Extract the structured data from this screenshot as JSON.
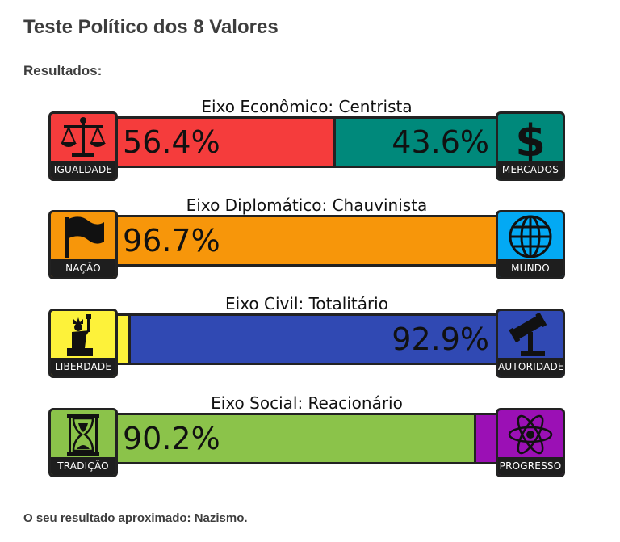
{
  "title": "Teste Político dos 8 Valores",
  "results_label": "Resultados:",
  "footer": "O seu resultado aproximado: Nazismo.",
  "axes": [
    {
      "title": "Eixo Econômico: Centrista",
      "left_label": "IGUALDADE",
      "right_label": "MERCADOS",
      "left_pct": 56.4,
      "right_pct": 43.6,
      "left_text": "56.4%",
      "right_text": "43.6%",
      "left_color": "#f53c3c",
      "right_color": "#00897b",
      "left_icon": "scales-icon",
      "right_icon": "dollar-icon"
    },
    {
      "title": "Eixo Diplomático: Chauvinista",
      "left_label": "NAÇÃO",
      "right_label": "MUNDO",
      "left_pct": 96.7,
      "right_pct": 3.3,
      "left_text": "96.7%",
      "right_text": "",
      "left_color": "#f7960a",
      "right_color": "#03a9f4",
      "left_icon": "flag-icon",
      "right_icon": "globe-icon"
    },
    {
      "title": "Eixo Civil: Totalitário",
      "left_label": "LIBERDADE",
      "right_label": "AUTORIDADE",
      "left_pct": 7.1,
      "right_pct": 92.9,
      "left_text": "",
      "right_text": "92.9%",
      "left_color": "#fdf23a",
      "right_color": "#3049b3",
      "left_icon": "statue-of-liberty-icon",
      "right_icon": "gavel-icon"
    },
    {
      "title": "Eixo Social: Reacionário",
      "left_label": "TRADIÇÃO",
      "right_label": "PROGRESSO",
      "left_pct": 90.2,
      "right_pct": 9.8,
      "left_text": "90.2%",
      "right_text": "",
      "left_color": "#8bc34a",
      "right_color": "#9b10b5",
      "left_icon": "hourglass-icon",
      "right_icon": "atom-icon"
    }
  ]
}
